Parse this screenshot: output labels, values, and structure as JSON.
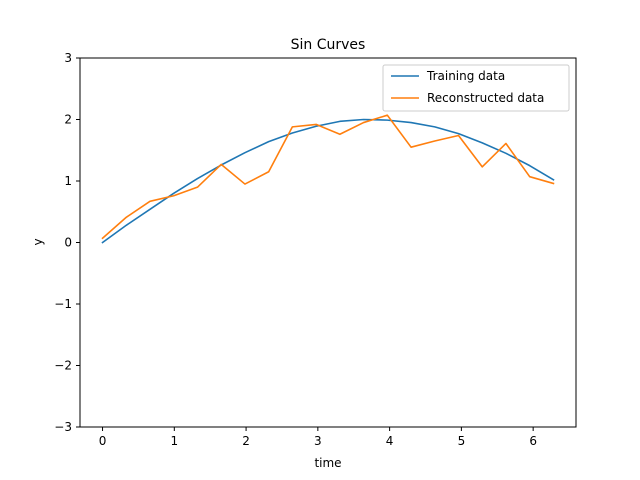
{
  "chart_data": {
    "type": "line",
    "title": "Sin Curves",
    "xlabel": "time",
    "ylabel": "y",
    "xlim": [
      -0.314,
      6.597
    ],
    "ylim": [
      -3,
      3
    ],
    "xticks": [
      0,
      1,
      2,
      3,
      4,
      5,
      6
    ],
    "yticks": [
      -3,
      -2,
      -1,
      0,
      1,
      2,
      3
    ],
    "xtick_labels": [
      "0",
      "1",
      "2",
      "3",
      "4",
      "5",
      "6"
    ],
    "ytick_labels": [
      "−3",
      "−2",
      "−1",
      "0",
      "1",
      "2",
      "3"
    ],
    "grid": false,
    "legend_position": "top-right",
    "x": [
      0,
      0.331,
      0.661,
      0.992,
      1.323,
      1.653,
      1.984,
      2.315,
      2.645,
      2.976,
      3.307,
      3.637,
      3.968,
      4.299,
      4.629,
      4.96,
      5.291,
      5.621,
      5.952,
      6.283
    ],
    "series": [
      {
        "name": "Training data",
        "color": "#1f77b4",
        "values": [
          0.0,
          0.28,
          0.54,
          0.8,
          1.04,
          1.26,
          1.46,
          1.64,
          1.78,
          1.89,
          1.97,
          2.0,
          1.99,
          1.95,
          1.88,
          1.77,
          1.62,
          1.45,
          1.25,
          1.02
        ]
      },
      {
        "name": "Reconstructed data",
        "color": "#ff7f0e",
        "values": [
          0.07,
          0.41,
          0.67,
          0.76,
          0.9,
          1.27,
          0.95,
          1.15,
          1.88,
          1.92,
          1.76,
          1.95,
          2.07,
          1.55,
          1.65,
          1.74,
          1.23,
          1.61,
          1.07,
          0.96
        ]
      }
    ]
  }
}
